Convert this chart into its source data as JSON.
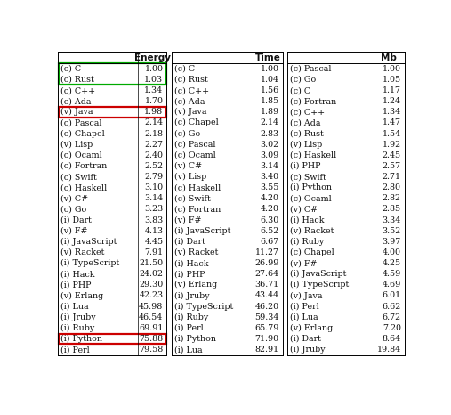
{
  "energy_col": {
    "langs": [
      "(c) C",
      "(c) Rust",
      "(c) C++",
      "(c) Ada",
      "(v) Java",
      "(c) Pascal",
      "(c) Chapel",
      "(v) Lisp",
      "(c) Ocaml",
      "(c) Fortran",
      "(c) Swift",
      "(c) Haskell",
      "(v) C#",
      "(c) Go",
      "(i) Dart",
      "(v) F#",
      "(i) JavaScript",
      "(v) Racket",
      "(i) TypeScript",
      "(i) Hack",
      "(i) PHP",
      "(v) Erlang",
      "(i) Lua",
      "(i) Jruby",
      "(i) Ruby",
      "(i) Python",
      "(i) Perl"
    ],
    "values": [
      "1.00",
      "1.03",
      "1.34",
      "1.70",
      "1.98",
      "2.14",
      "2.18",
      "2.27",
      "2.40",
      "2.52",
      "2.79",
      "3.10",
      "3.14",
      "3.23",
      "3.83",
      "4.13",
      "4.45",
      "7.91",
      "21.50",
      "24.02",
      "29.30",
      "42.23",
      "45.98",
      "46.54",
      "69.91",
      "75.88",
      "79.58"
    ],
    "header": "Energy",
    "green_span": [
      0,
      1
    ],
    "red_single": [
      4,
      25
    ]
  },
  "time_col": {
    "langs": [
      "(c) C",
      "(c) Rust",
      "(c) C++",
      "(c) Ada",
      "(v) Java",
      "(c) Chapel",
      "(c) Go",
      "(c) Pascal",
      "(c) Ocaml",
      "(v) C#",
      "(v) Lisp",
      "(c) Haskell",
      "(c) Swift",
      "(c) Fortran",
      "(v) F#",
      "(i) JavaScript",
      "(i) Dart",
      "(v) Racket",
      "(i) Hack",
      "(i) PHP",
      "(v) Erlang",
      "(i) Jruby",
      "(i) TypeScript",
      "(i) Ruby",
      "(i) Perl",
      "(i) Python",
      "(i) Lua"
    ],
    "values": [
      "1.00",
      "1.04",
      "1.56",
      "1.85",
      "1.89",
      "2.14",
      "2.83",
      "3.02",
      "3.09",
      "3.14",
      "3.40",
      "3.55",
      "4.20",
      "4.20",
      "6.30",
      "6.52",
      "6.67",
      "11.27",
      "26.99",
      "27.64",
      "36.71",
      "43.44",
      "46.20",
      "59.34",
      "65.79",
      "71.90",
      "82.91"
    ],
    "header": "Time"
  },
  "mb_col": {
    "langs": [
      "(c) Pascal",
      "(c) Go",
      "(c) C",
      "(c) Fortran",
      "(c) C++",
      "(c) Ada",
      "(c) Rust",
      "(v) Lisp",
      "(c) Haskell",
      "(i) PHP",
      "(c) Swift",
      "(i) Python",
      "(c) Ocaml",
      "(v) C#",
      "(i) Hack",
      "(v) Racket",
      "(i) Ruby",
      "(c) Chapel",
      "(v) F#",
      "(i) JavaScript",
      "(i) TypeScript",
      "(v) Java",
      "(i) Perl",
      "(i) Lua",
      "(v) Erlang",
      "(i) Dart",
      "(i) Jruby"
    ],
    "values": [
      "1.00",
      "1.05",
      "1.17",
      "1.24",
      "1.34",
      "1.47",
      "1.54",
      "1.92",
      "2.45",
      "2.57",
      "2.71",
      "2.80",
      "2.82",
      "2.85",
      "3.34",
      "3.52",
      "3.97",
      "4.00",
      "4.25",
      "4.59",
      "4.69",
      "6.01",
      "6.62",
      "6.72",
      "7.20",
      "8.64",
      "19.84"
    ],
    "header": "Mb"
  },
  "green_color": "#00aa00",
  "red_color": "#cc0000",
  "text_color": "#111111",
  "font_size": 6.8,
  "header_font_size": 7.5,
  "figsize": [
    5.07,
    4.66
  ],
  "dpi": 100
}
